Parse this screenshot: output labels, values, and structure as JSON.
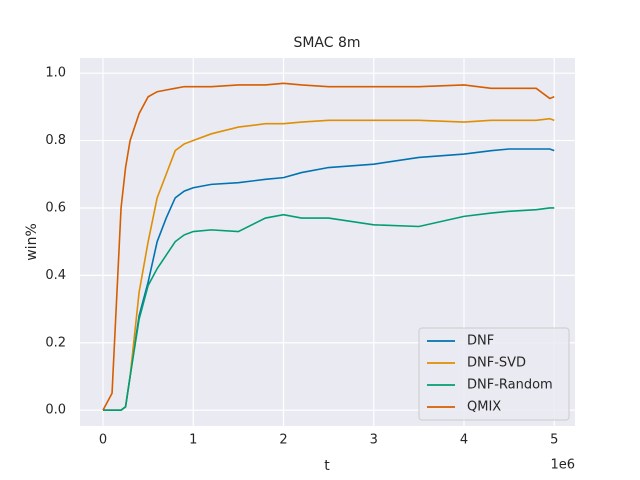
{
  "chart_data": {
    "type": "line",
    "title": "SMAC 8m",
    "x_label": "t",
    "y_label": "win%",
    "x_offset_label": "1e6",
    "x": [
      0,
      0.1,
      0.2,
      0.25,
      0.3,
      0.4,
      0.5,
      0.6,
      0.7,
      0.8,
      0.9,
      1.0,
      1.2,
      1.5,
      1.8,
      2.0,
      2.2,
      2.5,
      3.0,
      3.5,
      4.0,
      4.3,
      4.5,
      4.8,
      4.95,
      5.0
    ],
    "series": [
      {
        "name": "DNF",
        "color": "#0173b2",
        "values": [
          0,
          0,
          0,
          0.01,
          0.1,
          0.28,
          0.38,
          0.5,
          0.57,
          0.63,
          0.65,
          0.66,
          0.67,
          0.675,
          0.685,
          0.69,
          0.705,
          0.72,
          0.73,
          0.75,
          0.76,
          0.77,
          0.775,
          0.775,
          0.775,
          0.77
        ]
      },
      {
        "name": "DNF-SVD",
        "color": "#de8f05",
        "values": [
          0,
          0,
          0,
          0.01,
          0.1,
          0.35,
          0.5,
          0.63,
          0.7,
          0.77,
          0.79,
          0.8,
          0.82,
          0.84,
          0.85,
          0.85,
          0.855,
          0.86,
          0.86,
          0.86,
          0.855,
          0.86,
          0.86,
          0.86,
          0.865,
          0.86
        ]
      },
      {
        "name": "DNF-Random",
        "color": "#029e73",
        "values": [
          0,
          0,
          0,
          0.01,
          0.1,
          0.27,
          0.37,
          0.42,
          0.46,
          0.5,
          0.52,
          0.53,
          0.535,
          0.53,
          0.57,
          0.58,
          0.57,
          0.57,
          0.55,
          0.545,
          0.575,
          0.585,
          0.59,
          0.595,
          0.6,
          0.6
        ]
      },
      {
        "name": "QMIX",
        "color": "#d55e00",
        "values": [
          0,
          0.05,
          0.6,
          0.72,
          0.8,
          0.88,
          0.93,
          0.945,
          0.95,
          0.955,
          0.96,
          0.96,
          0.96,
          0.965,
          0.965,
          0.97,
          0.965,
          0.96,
          0.96,
          0.96,
          0.965,
          0.955,
          0.955,
          0.955,
          0.925,
          0.93
        ]
      }
    ],
    "xlim": [
      -0.255,
      5.23
    ],
    "xticks": [
      0,
      1,
      2,
      3,
      4,
      5
    ],
    "ylim": [
      -0.047,
      1.045
    ],
    "yticks": [
      {
        "value": 0,
        "label": "0.0"
      },
      {
        "value": 0.2,
        "label": "0.2"
      },
      {
        "value": 0.4,
        "label": "0.4"
      },
      {
        "value": 0.6,
        "label": "0.6"
      },
      {
        "value": 0.8,
        "label": "0.8"
      },
      {
        "value": 1.0,
        "label": "1.0"
      }
    ],
    "grid": true,
    "legend_position": "lower-right"
  }
}
